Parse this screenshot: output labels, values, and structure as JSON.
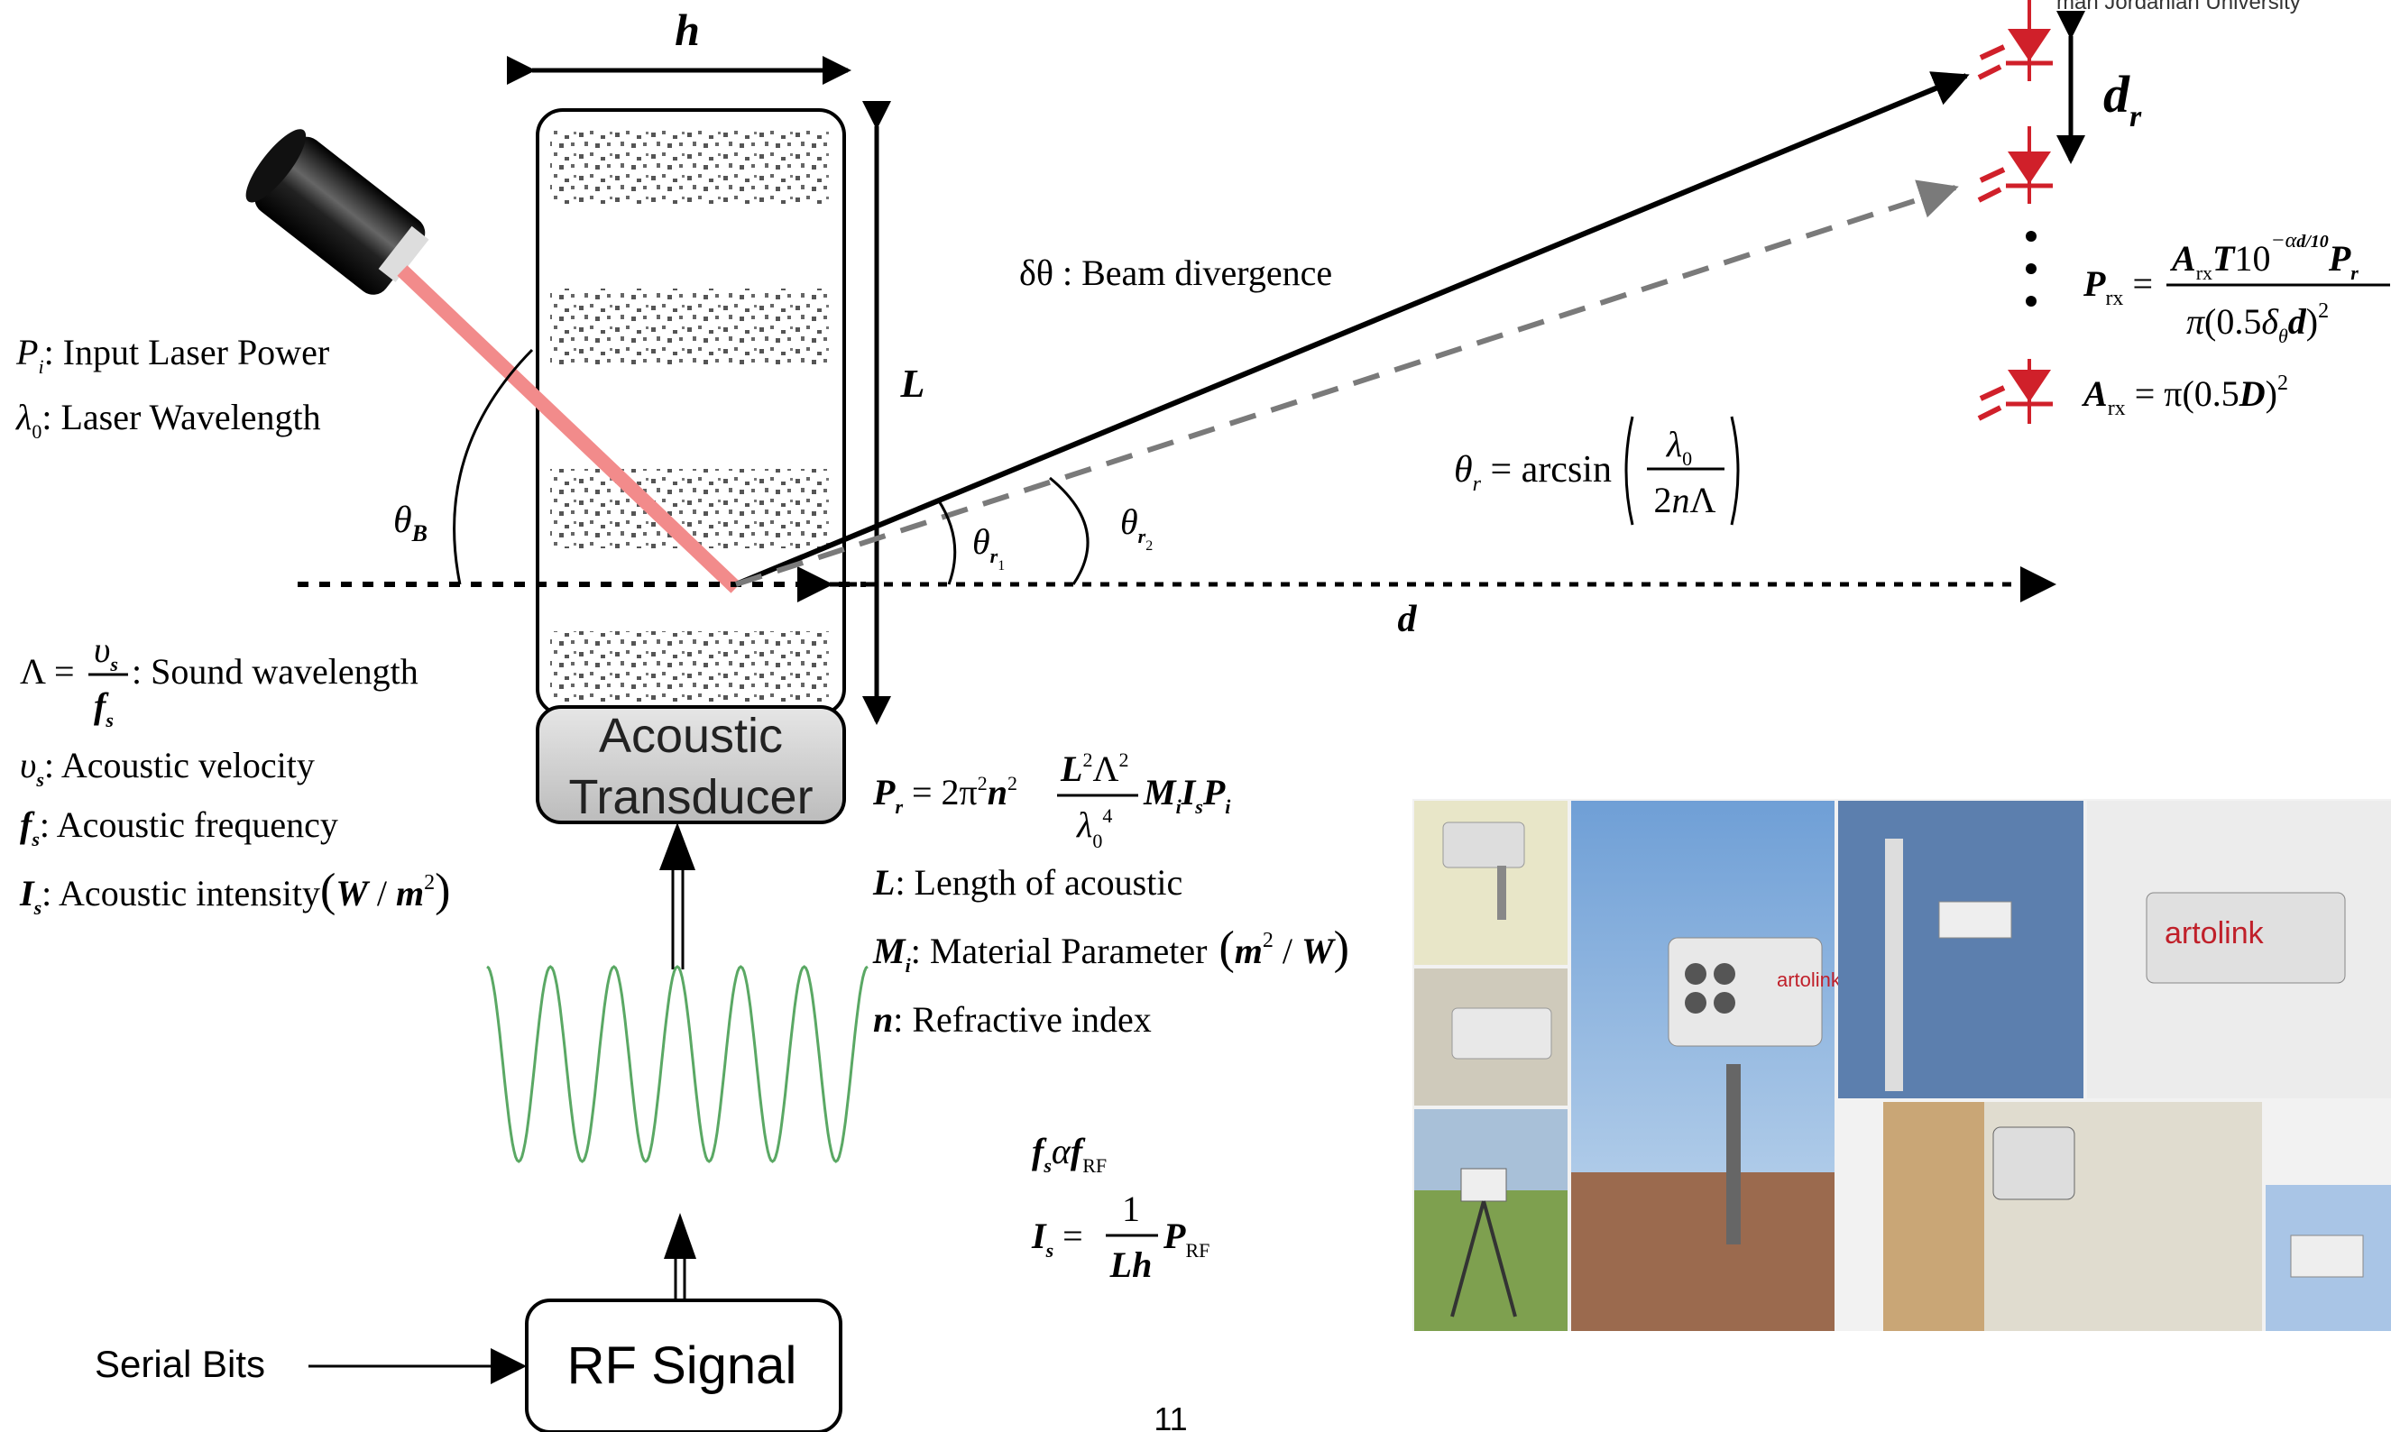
{
  "header": {
    "affiliation": "man Jordanian University"
  },
  "slide": {
    "page_number": "11"
  },
  "labels": {
    "h": "h",
    "L": "L",
    "d": "d",
    "dr": "d",
    "dr_sub": "r",
    "theta_B": "θ",
    "theta_B_sub": "B",
    "theta_r1": "θ",
    "theta_r1_sub": "r",
    "theta_r1_subsub": "1",
    "theta_r2": "θ",
    "theta_r2_sub": "r",
    "theta_r2_subsub": "2",
    "beam_divergence": "δθ : Beam divergence",
    "dots": "⋮"
  },
  "legend_left": [
    {
      "symbol": "Pi",
      "text": ": Input Laser Power"
    },
    {
      "symbol": "λ0",
      "text": ": Laser Wavelength"
    }
  ],
  "acoustic_params": {
    "sound_wavelength": ": Sound wavelength",
    "velocity": ": Acoustic velocity",
    "frequency": ": Acoustic frequency",
    "intensity": ": Acoustic intensity"
  },
  "formula_defs": {
    "length": ": Length of acoustic",
    "material": ": Material Parameter",
    "refractive": ": Refractive index"
  },
  "boxes": {
    "transducer_line1": "Acoustic",
    "transducer_line2": "Transducer",
    "rf_signal": "RF Signal",
    "serial_bits": "Serial Bits"
  },
  "colors": {
    "laser_beam": "#f28b8b",
    "diode": "#d0202a",
    "rf_wave": "#5aa864",
    "dashed_beam": "#7a7a7a",
    "transducer_fill": "#cfcfcf"
  },
  "photo_collage": {
    "brand_text": "artolink"
  }
}
